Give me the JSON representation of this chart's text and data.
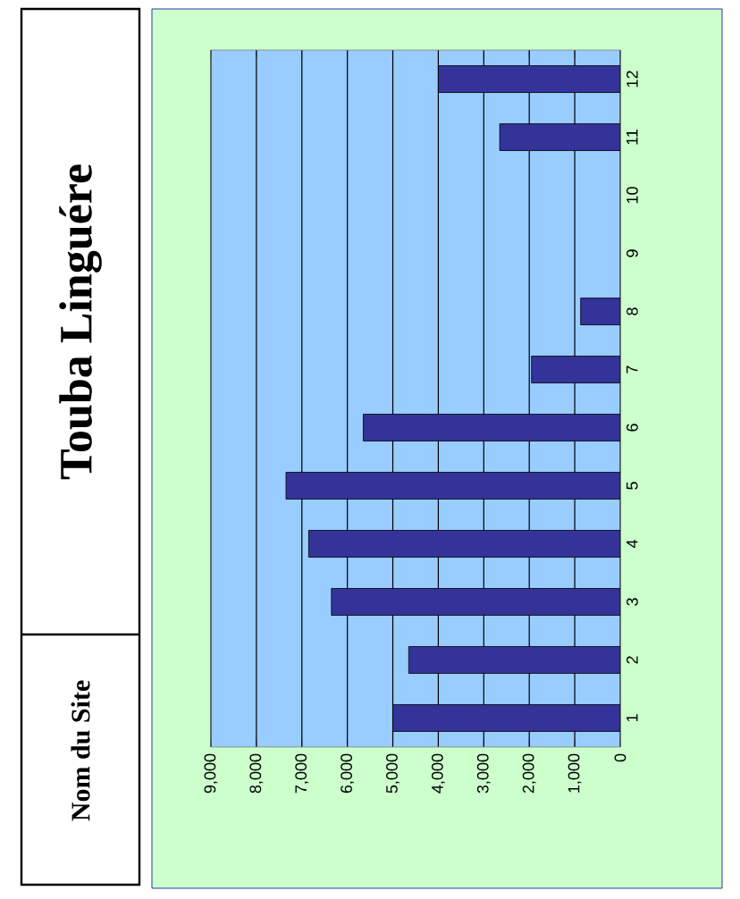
{
  "chart_data": {
    "type": "bar",
    "orientation": "horizontal",
    "title": "Touba Linguére",
    "annotations": [
      "Nom du Site"
    ],
    "categories": [
      "12",
      "11",
      "10",
      "9",
      "8",
      "7",
      "6",
      "5",
      "4",
      "3",
      "2",
      "1"
    ],
    "series": [
      {
        "color": "#333399",
        "values": [
          4000,
          2650,
          null,
          null,
          870,
          1950,
          5650,
          7350,
          6850,
          6350,
          4650,
          5000
        ]
      }
    ],
    "xlim": [
      9000,
      0
    ],
    "xticks": [
      {
        "value": 9000,
        "label": "9,000"
      },
      {
        "value": 8000,
        "label": "8,000"
      },
      {
        "value": 7000,
        "label": "7,000"
      },
      {
        "value": 6000,
        "label": "6,000"
      },
      {
        "value": 5000,
        "label": "5,000"
      },
      {
        "value": 4000,
        "label": "4,000"
      },
      {
        "value": 3000,
        "label": "3,000"
      },
      {
        "value": 2000,
        "label": "2,000"
      },
      {
        "value": 1000,
        "label": "1,000"
      },
      {
        "value": 0,
        "label": "0"
      }
    ],
    "grid": "x"
  }
}
